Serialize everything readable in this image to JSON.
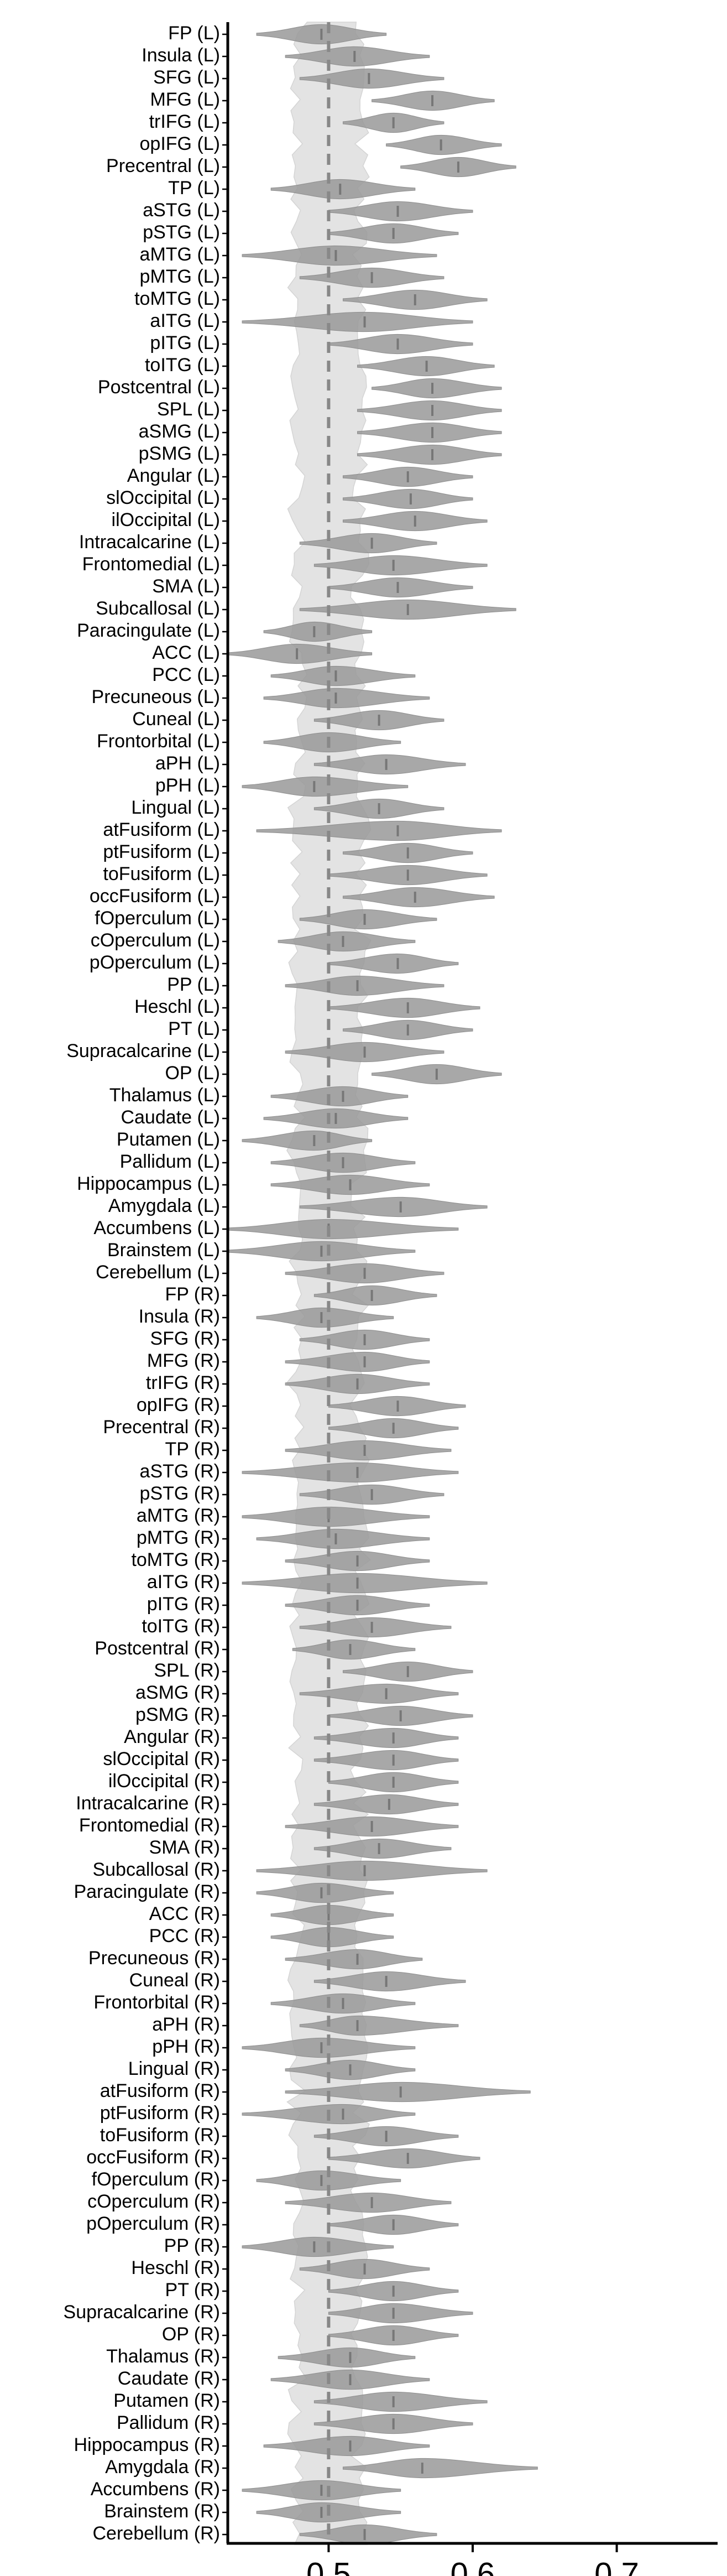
{
  "chart_data": {
    "type": "violin",
    "orientation": "horizontal",
    "title": "",
    "xlabel": "",
    "ylabel": "",
    "xlim": [
      0.43,
      0.77
    ],
    "xticks": [
      0.5,
      0.6,
      0.7
    ],
    "xtick_labels": [
      "0.5",
      "0.6",
      "0.7"
    ],
    "reference_line": {
      "x": 0.5,
      "style": "dashed",
      "color": "#888888"
    },
    "null_distribution": {
      "color": "#e3e3e3",
      "center": 0.5,
      "halfwidth": 0.022
    },
    "violin_color": "#999999",
    "median_color": "#777777",
    "grid": false,
    "categories": [
      "FP (L)",
      "Insula (L)",
      "SFG (L)",
      "MFG (L)",
      "trIFG (L)",
      "opIFG (L)",
      "Precentral (L)",
      "TP (L)",
      "aSTG (L)",
      "pSTG (L)",
      "aMTG (L)",
      "pMTG (L)",
      "toMTG (L)",
      "aITG (L)",
      "pITG (L)",
      "toITG (L)",
      "Postcentral (L)",
      "SPL (L)",
      "aSMG (L)",
      "pSMG (L)",
      "Angular (L)",
      "slOccipital (L)",
      "ilOccipital (L)",
      "Intracalcarine (L)",
      "Frontomedial (L)",
      "SMA (L)",
      "Subcallosal (L)",
      "Paracingulate (L)",
      "ACC (L)",
      "PCC (L)",
      "Precuneous (L)",
      "Cuneal (L)",
      "Frontorbital (L)",
      "aPH (L)",
      "pPH (L)",
      "Lingual (L)",
      "atFusiform (L)",
      "ptFusiform (L)",
      "toFusiform (L)",
      "occFusiform (L)",
      "fOperculum (L)",
      "cOperculum (L)",
      "pOperculum (L)",
      "PP (L)",
      "Heschl (L)",
      "PT (L)",
      "Supracalcarine (L)",
      "OP (L)",
      "Thalamus (L)",
      "Caudate (L)",
      "Putamen (L)",
      "Pallidum (L)",
      "Hippocampus (L)",
      "Amygdala (L)",
      "Accumbens (L)",
      "Brainstem (L)",
      "Cerebellum (L)",
      "FP (R)",
      "Insula (R)",
      "SFG (R)",
      "MFG (R)",
      "trIFG (R)",
      "opIFG (R)",
      "Precentral (R)",
      "TP (R)",
      "aSTG (R)",
      "pSTG (R)",
      "aMTG (R)",
      "pMTG (R)",
      "toMTG (R)",
      "aITG (R)",
      "pITG (R)",
      "toITG (R)",
      "Postcentral (R)",
      "SPL (R)",
      "aSMG (R)",
      "pSMG (R)",
      "Angular (R)",
      "slOccipital (R)",
      "ilOccipital (R)",
      "Intracalcarine (R)",
      "Frontomedial (R)",
      "SMA (R)",
      "Subcallosal (R)",
      "Paracingulate (R)",
      "ACC (R)",
      "PCC (R)",
      "Precuneous (R)",
      "Cuneal (R)",
      "Frontorbital (R)",
      "aPH (R)",
      "pPH (R)",
      "Lingual (R)",
      "atFusiform (R)",
      "ptFusiform (R)",
      "toFusiform (R)",
      "occFusiform (R)",
      "fOperculum (R)",
      "cOperculum (R)",
      "pOperculum (R)",
      "PP (R)",
      "Heschl (R)",
      "PT (R)",
      "Supracalcarine (R)",
      "OP (R)",
      "Thalamus (R)",
      "Caudate (R)",
      "Putamen (R)",
      "Pallidum (R)",
      "Hippocampus (R)",
      "Amygdala (R)",
      "Accumbens (R)",
      "Brainstem (R)",
      "Cerebellum (R)"
    ],
    "series": [
      {
        "medians": [
          0.495,
          0.518,
          0.528,
          0.572,
          0.545,
          0.578,
          0.59,
          0.508,
          0.548,
          0.545,
          0.505,
          0.53,
          0.56,
          0.525,
          0.548,
          0.568,
          0.572,
          0.572,
          0.572,
          0.572,
          0.555,
          0.557,
          0.56,
          0.53,
          0.545,
          0.548,
          0.555,
          0.49,
          0.478,
          0.505,
          0.505,
          0.535,
          0.5,
          0.54,
          0.49,
          0.535,
          0.548,
          0.555,
          0.555,
          0.56,
          0.525,
          0.51,
          0.548,
          0.52,
          0.555,
          0.555,
          0.525,
          0.575,
          0.51,
          0.505,
          0.49,
          0.51,
          0.515,
          0.55,
          0.5,
          0.495,
          0.525,
          0.53,
          0.495,
          0.525,
          0.525,
          0.52,
          0.548,
          0.545,
          0.525,
          0.52,
          0.53,
          0.5,
          0.505,
          0.52,
          0.52,
          0.52,
          0.53,
          0.515,
          0.555,
          0.54,
          0.55,
          0.545,
          0.545,
          0.545,
          0.542,
          0.53,
          0.535,
          0.525,
          0.495,
          0.5,
          0.5,
          0.52,
          0.54,
          0.51,
          0.52,
          0.495,
          0.515,
          0.55,
          0.51,
          0.54,
          0.555,
          0.495,
          0.53,
          0.545,
          0.49,
          0.525,
          0.545,
          0.545,
          0.545,
          0.515,
          0.515,
          0.545,
          0.545,
          0.515,
          0.565,
          0.495,
          0.495,
          0.525
        ],
        "mins": [
          0.45,
          0.47,
          0.48,
          0.53,
          0.51,
          0.54,
          0.55,
          0.46,
          0.5,
          0.5,
          0.44,
          0.48,
          0.51,
          0.44,
          0.5,
          0.52,
          0.53,
          0.52,
          0.52,
          0.52,
          0.51,
          0.51,
          0.51,
          0.48,
          0.49,
          0.5,
          0.48,
          0.455,
          0.43,
          0.46,
          0.455,
          0.49,
          0.455,
          0.49,
          0.44,
          0.49,
          0.45,
          0.51,
          0.5,
          0.51,
          0.48,
          0.465,
          0.5,
          0.47,
          0.5,
          0.51,
          0.47,
          0.53,
          0.46,
          0.455,
          0.44,
          0.46,
          0.46,
          0.48,
          0.43,
          0.43,
          0.47,
          0.49,
          0.45,
          0.48,
          0.47,
          0.47,
          0.5,
          0.5,
          0.47,
          0.44,
          0.48,
          0.44,
          0.45,
          0.47,
          0.44,
          0.47,
          0.48,
          0.475,
          0.51,
          0.48,
          0.5,
          0.49,
          0.49,
          0.5,
          0.49,
          0.47,
          0.49,
          0.45,
          0.45,
          0.46,
          0.46,
          0.47,
          0.49,
          0.46,
          0.48,
          0.44,
          0.47,
          0.47,
          0.44,
          0.49,
          0.5,
          0.45,
          0.47,
          0.5,
          0.44,
          0.48,
          0.5,
          0.5,
          0.5,
          0.465,
          0.46,
          0.49,
          0.49,
          0.455,
          0.51,
          0.44,
          0.45,
          0.48
        ],
        "maxs": [
          0.54,
          0.57,
          0.58,
          0.615,
          0.58,
          0.62,
          0.63,
          0.56,
          0.6,
          0.59,
          0.575,
          0.58,
          0.61,
          0.6,
          0.6,
          0.615,
          0.62,
          0.62,
          0.62,
          0.62,
          0.6,
          0.6,
          0.61,
          0.575,
          0.61,
          0.6,
          0.63,
          0.53,
          0.53,
          0.56,
          0.57,
          0.58,
          0.55,
          0.595,
          0.555,
          0.58,
          0.62,
          0.6,
          0.61,
          0.615,
          0.575,
          0.56,
          0.59,
          0.58,
          0.605,
          0.6,
          0.58,
          0.62,
          0.555,
          0.555,
          0.53,
          0.56,
          0.57,
          0.61,
          0.59,
          0.56,
          0.58,
          0.575,
          0.545,
          0.57,
          0.57,
          0.57,
          0.595,
          0.59,
          0.585,
          0.59,
          0.58,
          0.57,
          0.57,
          0.57,
          0.61,
          0.57,
          0.585,
          0.56,
          0.6,
          0.59,
          0.6,
          0.59,
          0.59,
          0.59,
          0.59,
          0.59,
          0.585,
          0.61,
          0.545,
          0.545,
          0.545,
          0.565,
          0.595,
          0.56,
          0.59,
          0.56,
          0.56,
          0.64,
          0.56,
          0.59,
          0.605,
          0.55,
          0.585,
          0.59,
          0.545,
          0.57,
          0.59,
          0.6,
          0.59,
          0.56,
          0.57,
          0.61,
          0.6,
          0.57,
          0.645,
          0.55,
          0.55,
          0.575
        ]
      }
    ]
  }
}
